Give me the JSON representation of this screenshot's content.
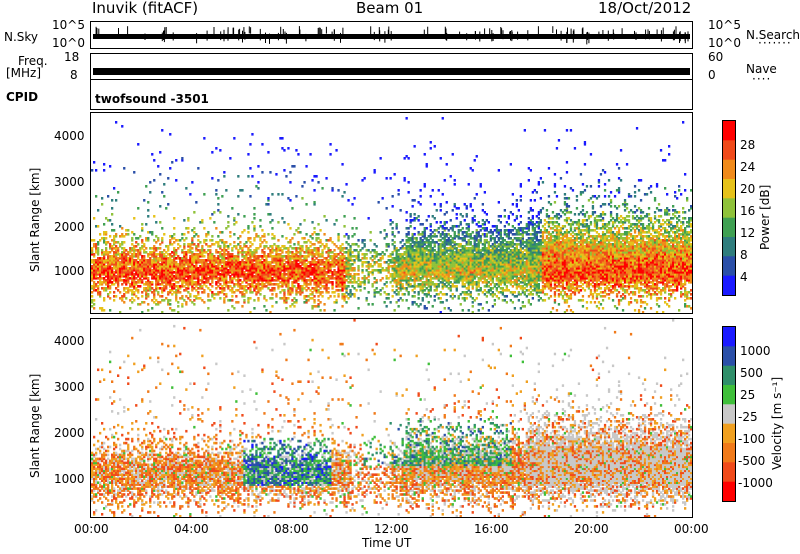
{
  "header": {
    "station": "Inuvik (fitACF)",
    "beam": "Beam 01",
    "date": "18/Oct/2012"
  },
  "top_panels": {
    "nsky_label": "N.Sky",
    "nsky_ticks": [
      "10^5",
      "10^0"
    ],
    "nsearch_label": "N.Search",
    "nsearch_ticks": [
      "10^5",
      "10^0"
    ],
    "freq_label": "Freq.",
    "freq_unit": "[MHz]",
    "freq_ticks": [
      "18",
      "8"
    ],
    "nave_label": "Nave",
    "nave_ticks": [
      "60",
      "0"
    ],
    "cpid_label": "CPID",
    "cpid_value": "twofsound -3501"
  },
  "chart_data": [
    {
      "type": "heatmap",
      "name": "power-panel",
      "ylabel": "Slant Range [km]",
      "xlabel": "",
      "y_ticks": [
        "1000",
        "2000",
        "3000",
        "4000"
      ],
      "x_ticks": [
        "00:00",
        "04:00",
        "08:00",
        "12:00",
        "16:00",
        "20:00",
        "00:00"
      ],
      "xlim": [
        0,
        24
      ],
      "ylim": [
        200,
        4500
      ],
      "colorbar": {
        "label": "Power [dB]",
        "ticks": [
          "4",
          "8",
          "12",
          "16",
          "20",
          "24",
          "28"
        ],
        "range": [
          0,
          30
        ],
        "colors": [
          "#1a1aff",
          "#2a4fa8",
          "#2f7d7d",
          "#3fa052",
          "#8fc23a",
          "#e6c21a",
          "#f08a1a",
          "#f04a1a",
          "#ff0000"
        ]
      }
    },
    {
      "type": "heatmap",
      "name": "velocity-panel",
      "ylabel": "Slant Range [km]",
      "xlabel": "Time UT",
      "y_ticks": [
        "1000",
        "2000",
        "3000",
        "4000"
      ],
      "x_ticks": [
        "00:00",
        "04:00",
        "08:00",
        "12:00",
        "16:00",
        "20:00",
        "00:00"
      ],
      "xlim": [
        0,
        24
      ],
      "ylim": [
        200,
        4500
      ],
      "colorbar": {
        "label": "Velocity [m s⁻¹]",
        "ticks": [
          "1000",
          "500",
          "25",
          "-25",
          "-100",
          "-500",
          "-1000"
        ],
        "colors": [
          "#1a1aff",
          "#2a4fa8",
          "#2f8f6a",
          "#3fbf3a",
          "#c8c8c8",
          "#f0a020",
          "#f07a1a",
          "#f04a1a",
          "#ff0000"
        ]
      }
    }
  ]
}
